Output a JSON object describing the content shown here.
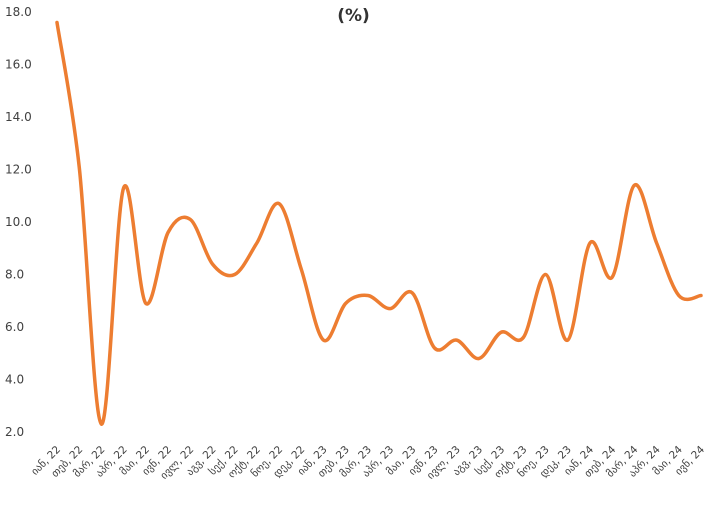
{
  "chart_data": {
    "type": "line",
    "title": "(%)",
    "xlabel": "",
    "ylabel": "",
    "ylim": [
      2.0,
      18.0
    ],
    "yticks": [
      "2.0",
      "4.0",
      "6.0",
      "8.0",
      "10.0",
      "12.0",
      "14.0",
      "16.0",
      "18.0"
    ],
    "grid": false,
    "legend": "none",
    "categories": [
      "იან, 22",
      "თებ, 22",
      "მარ, 22",
      "აპრ, 22",
      "მაი, 22",
      "ივნ, 22",
      "ივლ, 22",
      "აგვ, 22",
      "სექ, 22",
      "ოქტ, 22",
      "ნოე, 22",
      "დეკ, 22",
      "იან, 23",
      "თებ, 23",
      "მარ, 23",
      "აპრ, 23",
      "მაი, 23",
      "ივნ, 23",
      "ივლ, 23",
      "აგვ, 23",
      "სექ, 23",
      "ოქტ, 23",
      "ნოე, 23",
      "დეკ, 23",
      "იან, 24",
      "თებ, 24",
      "მარ, 24",
      "აპრ, 24",
      "მაი, 24",
      "ივნ, 24"
    ],
    "series": [
      {
        "color": "#ED7D31",
        "values": [
          17.6,
          12.1,
          2.3,
          11.3,
          6.9,
          9.6,
          10.1,
          8.4,
          8.0,
          9.2,
          10.7,
          8.2,
          5.5,
          6.9,
          7.2,
          6.7,
          7.3,
          5.2,
          5.5,
          4.8,
          5.8,
          5.6,
          8.0,
          5.5,
          9.2,
          7.9,
          11.4,
          9.2,
          7.2,
          7.2
        ]
      }
    ]
  }
}
